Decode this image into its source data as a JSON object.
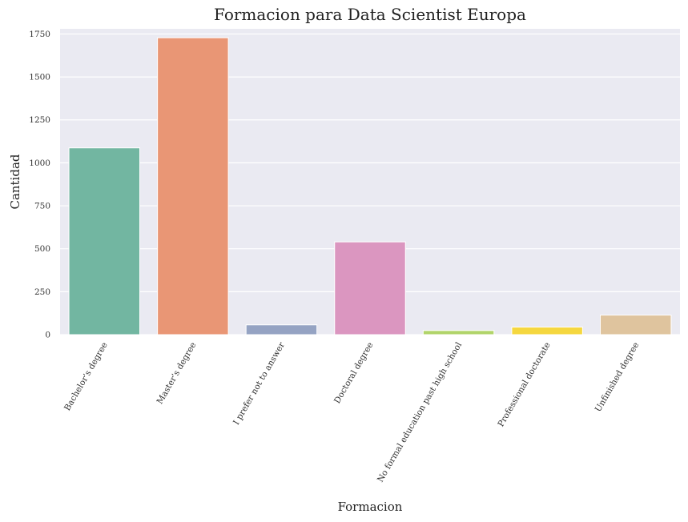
{
  "chart_data": {
    "type": "bar",
    "title": "Formacion para Data Scientist Europa",
    "xlabel": "Formacion",
    "ylabel": "Cantidad",
    "categories": [
      "Bachelor’s degree",
      "Master’s degree",
      "I prefer not to answer",
      "Doctoral degree",
      "No formal education past high school",
      "Professional doctorate",
      "Unfinished degree"
    ],
    "values": [
      1087,
      1728,
      57,
      540,
      24,
      44,
      114
    ],
    "colors": [
      "#72b6a1",
      "#e99675",
      "#95a3c3",
      "#db96c0",
      "#b1d46a",
      "#f5d73f",
      "#dfc49e"
    ],
    "ylim": [
      0,
      1780
    ],
    "yticks": [
      0,
      250,
      500,
      750,
      1000,
      1250,
      1500,
      1750
    ],
    "grid": true,
    "background": "#eaeaf2"
  }
}
